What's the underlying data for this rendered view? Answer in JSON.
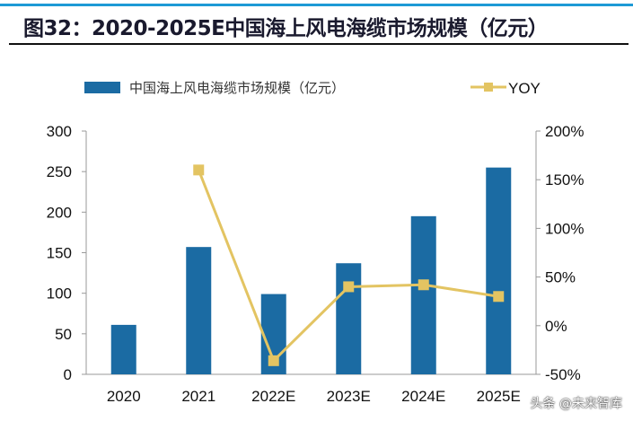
{
  "title": "图32：2020-2025E中国海上风电海缆市场规模（亿元）",
  "watermark": "头条 @未来智库",
  "colors": {
    "bar": "#1b6ba3",
    "line": "#e3c462",
    "accent": "#1e9ad6"
  },
  "chart_data": {
    "type": "bar",
    "title": "图32：2020-2025E中国海上风电海缆市场规模（亿元）",
    "categories": [
      "2020",
      "2021",
      "2022E",
      "2023E",
      "2024E",
      "2025E"
    ],
    "series": [
      {
        "name": "中国海上风电海缆市场规模（亿元）",
        "type": "bar",
        "axis": "left",
        "values": [
          61,
          157,
          99,
          137,
          195,
          255
        ]
      },
      {
        "name": "YOY",
        "type": "line",
        "axis": "right",
        "values": [
          null,
          160,
          -36,
          40,
          42,
          30
        ]
      }
    ],
    "y_left": {
      "lim": [
        0,
        300
      ],
      "ticks": [
        "0",
        "50",
        "100",
        "150",
        "200",
        "250",
        "300"
      ]
    },
    "y_right": {
      "lim": [
        -50,
        200
      ],
      "ticks": [
        "-50%",
        "0%",
        "50%",
        "100%",
        "150%",
        "200%"
      ]
    },
    "legend": "top",
    "grid": false
  }
}
